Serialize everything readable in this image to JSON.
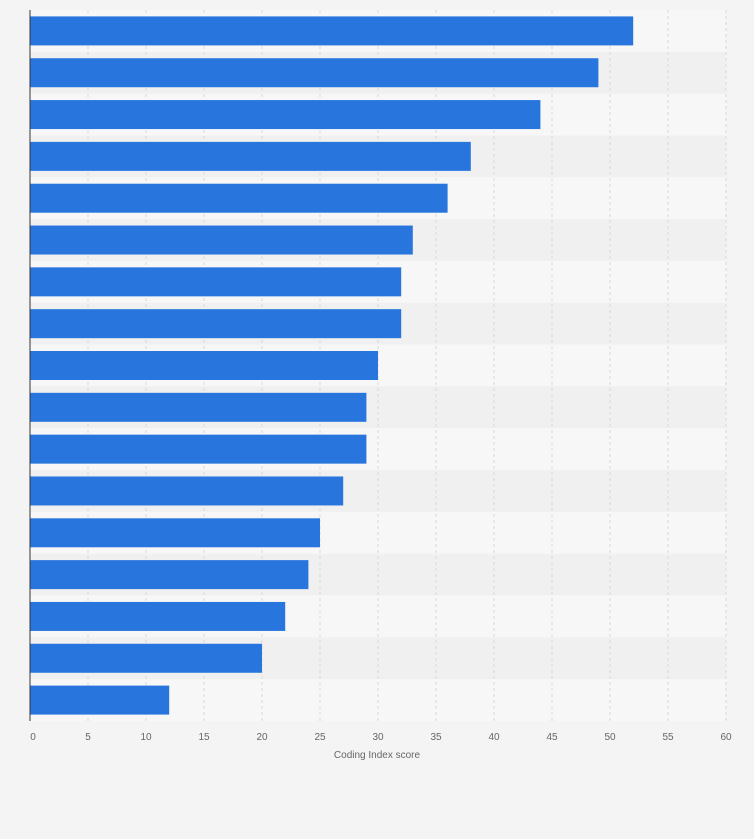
{
  "chart_data": {
    "type": "bar",
    "orientation": "horizontal",
    "xlabel": "Coding Index score",
    "xlim": [
      0,
      60
    ],
    "x_ticks": [
      0,
      5,
      10,
      15,
      20,
      25,
      30,
      35,
      40,
      45,
      50,
      55,
      60
    ],
    "x_tick_labels": [
      "0",
      "5",
      "10",
      "15",
      "20",
      "25",
      "30",
      "35",
      "40",
      "45",
      "50",
      "55",
      "60"
    ],
    "grid": true,
    "legend": "none",
    "values": [
      52,
      49,
      44,
      38,
      36,
      33,
      32,
      32,
      30,
      29,
      29,
      27,
      25,
      24,
      22,
      20,
      12
    ]
  },
  "colors": {
    "bar": "#2876dd",
    "page_background": "#f4f4f4",
    "band_light": "#f7f7f7",
    "band_dark": "#f0f0f0",
    "grid": "#d9d9d9",
    "axis": "#333333",
    "tick_text": "#666666"
  }
}
